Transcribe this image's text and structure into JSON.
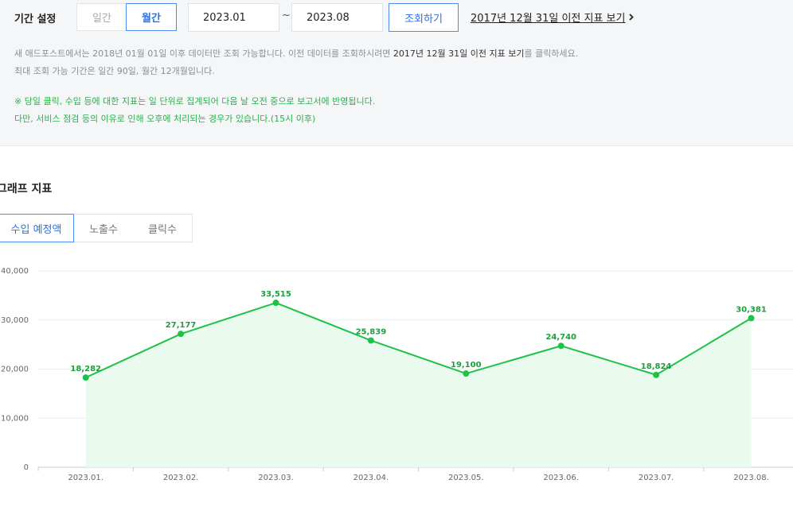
{
  "filter": {
    "period_label": "기간 설정",
    "daily_label": "일간",
    "monthly_label": "월간",
    "start_value": "2023.01",
    "tilde": "~",
    "end_value": "2023.08",
    "search_label": "조회하기",
    "prev_link_text": "2017년 12월 31일 이전 지표 보기"
  },
  "info": {
    "line1_pre": "새 애드포스트에서는 2018년 01월 01일 이후 데이터만 조회 가능합니다. 이전 데이터를 조회하시려면 ",
    "line1_link": "2017년 12월 31일 이전 지표 보기",
    "line1_post": "를 클릭하세요.",
    "line2": "최대 조회 가능 기간은 일간 90일, 월간 12개월입니다.",
    "notice1": "※ 당일 클릭, 수입 등에 대한 지표는 일 단위로 집계되어 다음 날 오전 중으로 보고서에 반영됩니다.",
    "notice2": "다만, 서비스 점검 등의 이유로 인해 오후에 처리되는 경우가 있습니다.(15시 이후)"
  },
  "graph": {
    "section_title": "그래프 지표",
    "tabs": [
      "수입 예정액",
      "노출수",
      "클릭수"
    ]
  },
  "colors": {
    "accent": "#2a6fe8",
    "line": "#1ec247",
    "area": "#eafaee",
    "notice": "#27b34a"
  },
  "chart_data": {
    "type": "area",
    "categories": [
      "2023.01.",
      "2023.02.",
      "2023.03.",
      "2023.04.",
      "2023.05.",
      "2023.06.",
      "2023.07.",
      "2023.08."
    ],
    "values": [
      18282,
      27177,
      33515,
      25839,
      19100,
      24740,
      18824,
      30381
    ],
    "data_labels": [
      "18,282",
      "27,177",
      "33,515",
      "25,839",
      "19,100",
      "24,740",
      "18,824",
      "30,381"
    ],
    "y_ticks": [
      0,
      10000,
      20000,
      30000,
      40000
    ],
    "y_tick_labels": [
      "0",
      "10,000",
      "20,000",
      "30,000",
      "40,000"
    ],
    "ylim": [
      0,
      40000
    ],
    "grid": true
  }
}
